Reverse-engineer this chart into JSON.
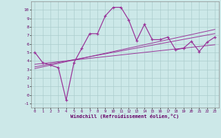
{
  "xlabel": "Windchill (Refroidissement éolien,°C)",
  "background_color": "#cce8e8",
  "line_color": "#993399",
  "x_main": [
    0,
    1,
    2,
    3,
    4,
    5,
    6,
    7,
    8,
    9,
    10,
    11,
    12,
    13,
    14,
    15,
    16,
    17,
    18,
    19,
    20,
    21,
    22,
    23
  ],
  "y_main": [
    5.0,
    3.8,
    3.5,
    3.2,
    -0.6,
    3.8,
    5.5,
    7.2,
    7.2,
    9.3,
    10.3,
    10.3,
    8.8,
    6.4,
    8.3,
    6.5,
    6.5,
    6.8,
    5.3,
    5.5,
    6.3,
    5.1,
    6.2,
    6.8
  ],
  "y_line1": [
    3.6,
    3.7,
    3.8,
    3.9,
    4.0,
    4.1,
    4.2,
    4.3,
    4.4,
    4.5,
    4.6,
    4.7,
    4.8,
    4.9,
    5.0,
    5.1,
    5.2,
    5.3,
    5.4,
    5.5,
    5.6,
    5.7,
    5.8,
    5.9
  ],
  "y_line2": [
    3.3,
    3.47,
    3.64,
    3.81,
    3.98,
    4.15,
    4.32,
    4.49,
    4.66,
    4.83,
    5.0,
    5.17,
    5.34,
    5.51,
    5.68,
    5.85,
    6.02,
    6.19,
    6.36,
    6.53,
    6.7,
    6.87,
    7.04,
    7.21
  ],
  "y_line3": [
    3.1,
    3.3,
    3.5,
    3.7,
    3.9,
    4.1,
    4.3,
    4.5,
    4.7,
    4.9,
    5.1,
    5.3,
    5.5,
    5.7,
    5.9,
    6.1,
    6.3,
    6.5,
    6.7,
    6.9,
    7.1,
    7.3,
    7.5,
    7.7
  ],
  "ylim": [
    -1.5,
    11.0
  ],
  "xlim": [
    -0.5,
    23.5
  ],
  "yticks": [
    -1,
    0,
    1,
    2,
    3,
    4,
    5,
    6,
    7,
    8,
    9,
    10
  ],
  "xticks": [
    0,
    1,
    2,
    3,
    4,
    5,
    6,
    7,
    8,
    9,
    10,
    11,
    12,
    13,
    14,
    15,
    16,
    17,
    18,
    19,
    20,
    21,
    22,
    23
  ],
  "grid_color": "#aacccc"
}
